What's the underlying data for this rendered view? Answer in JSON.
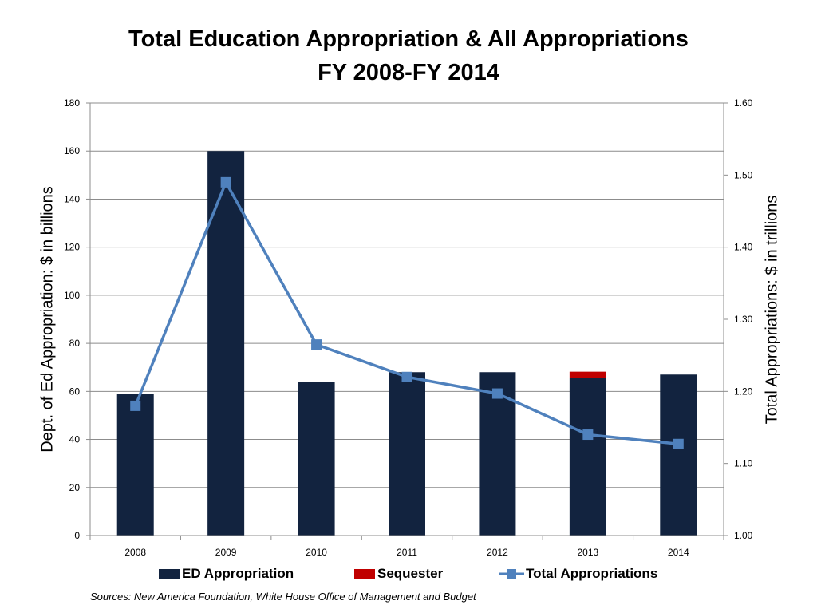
{
  "chart_data": {
    "type": "bar",
    "title": "Total Education Appropriation & All Appropriations",
    "subtitle": "FY 2008-FY 2014",
    "categories": [
      "2008",
      "2009",
      "2010",
      "2011",
      "2012",
      "2013",
      "2014"
    ],
    "ylabel": "Dept. of Ed Appropriation: $ in billions",
    "y2label": "Total Appropriations: $ in trillions",
    "ylim": [
      0,
      180
    ],
    "y2lim": [
      1.0,
      1.6
    ],
    "yticks": [
      "0",
      "20",
      "40",
      "60",
      "80",
      "100",
      "120",
      "140",
      "160",
      "180"
    ],
    "y2ticks": [
      "1.00",
      "1.10",
      "1.20",
      "1.30",
      "1.40",
      "1.50",
      "1.60"
    ],
    "grid": true,
    "legend_position": "bottom",
    "series": [
      {
        "name": "ED Appropriation",
        "type": "bar",
        "axis": "left",
        "color": "#12233f",
        "values": [
          59,
          160,
          64,
          68,
          68,
          65.5,
          67
        ]
      },
      {
        "name": "Sequester",
        "type": "bar-stacked",
        "axis": "left",
        "color": "#c00000",
        "values": [
          0,
          0,
          0,
          0,
          0,
          2.7,
          0
        ]
      },
      {
        "name": "Total Appropriations",
        "type": "line",
        "axis": "right",
        "color": "#4f81bd",
        "values": [
          1.18,
          1.49,
          1.265,
          1.22,
          1.197,
          1.14,
          1.127
        ]
      }
    ],
    "source": "Sources: New America Foundation, White House Office of Management and Budget"
  }
}
